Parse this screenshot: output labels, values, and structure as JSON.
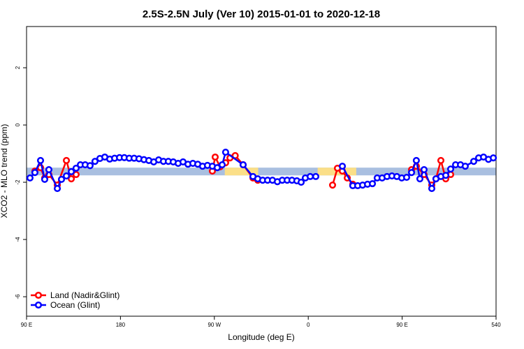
{
  "chart_data": {
    "type": "line",
    "title": "2.5S-2.5N July (Ver 10)   2015-01-01 to 2020-12-18",
    "x_label": "Longitude (deg E)",
    "y_label": "XCO2 - MLO trend (ppm)",
    "xlim": [
      90,
      540
    ],
    "xticks": [
      {
        "value": 90,
        "label": "90 E"
      },
      180,
      {
        "value": 270,
        "label": "90 W"
      },
      {
        "value": 360,
        "label": "0"
      },
      {
        "value": 450,
        "label": "90 E"
      },
      540
    ],
    "ylim": [
      -6.68,
      3.44
    ],
    "yticks": [
      -6,
      -4,
      -2,
      0,
      2
    ],
    "legend": "bottomleft",
    "reference_band": {
      "ylim": [
        -1.76,
        -1.49
      ],
      "color": "#a9bfe0",
      "land_segments": [
        [
          280,
          312
        ],
        [
          369,
          406
        ]
      ],
      "land_color": "#fbdf88"
    },
    "series": [
      {
        "name": "Land (Nadir&Glint)",
        "color": "#ff0000",
        "x": [
          98.0,
          103.4,
          107.4,
          111.4,
          119.5,
          128.2,
          132.9,
          137.5,
          null,
          268.1,
          270.8,
          275.5,
          280.8,
          285.0,
          290.0,
          297.6,
          307.0,
          311.6,
          null,
          383.3,
          388.0,
          392.7,
          397.4,
          402.7,
          null,
          459.0,
          463.6,
          471.0,
          478.4,
          482.4,
          487.1,
          491.8,
          496.5
        ],
        "values": [
          -1.61,
          -1.49,
          -1.85,
          -1.73,
          -2.1,
          -1.24,
          -1.88,
          -1.73,
          null,
          -1.61,
          -1.12,
          -1.46,
          -1.32,
          -1.15,
          -1.07,
          -1.39,
          -1.85,
          -1.93,
          null,
          -2.1,
          -1.51,
          -1.61,
          -1.85,
          -2.07,
          null,
          -1.56,
          -1.44,
          -1.73,
          -2.1,
          -1.88,
          -1.24,
          -1.88,
          -1.73
        ]
      },
      {
        "name": "Ocean (Glint)",
        "color": "#0000ff",
        "x": [
          93.3,
          98.0,
          103.4,
          107.4,
          111.4,
          119.5,
          123.5,
          128.2,
          132.9,
          137.5,
          141.6,
          146.2,
          150.9,
          155.6,
          160.3,
          165.0,
          169.7,
          174.4,
          179.1,
          183.7,
          188.4,
          193.1,
          197.8,
          202.5,
          207.2,
          211.9,
          216.6,
          221.2,
          225.9,
          230.6,
          235.3,
          240.0,
          244.7,
          249.4,
          254.1,
          258.7,
          263.4,
          268.1,
          272.8,
          277.5,
          280.8,
          297.6,
          307.0,
          311.6,
          316.3,
          321.0,
          325.7,
          330.4,
          335.1,
          339.8,
          344.4,
          349.1,
          353.2,
          357.2,
          361.9,
          367.2,
          null,
          392.7,
          402.7,
          407.4,
          412.1,
          416.8,
          421.5,
          426.1,
          430.8,
          435.5,
          440.2,
          444.9,
          449.6,
          454.3,
          459.0,
          463.6,
          467.0,
          471.0,
          478.4,
          482.4,
          487.1,
          491.8,
          496.5,
          501.2,
          505.9,
          510.5,
          518.6,
          523.3,
          528.0,
          532.7,
          537.4
        ],
        "values": [
          -1.85,
          -1.66,
          -1.24,
          -1.9,
          -1.56,
          -2.22,
          -1.9,
          -1.78,
          -1.63,
          -1.51,
          -1.39,
          -1.39,
          -1.42,
          -1.27,
          -1.17,
          -1.12,
          -1.19,
          -1.16,
          -1.14,
          -1.14,
          -1.16,
          -1.16,
          -1.18,
          -1.21,
          -1.24,
          -1.29,
          -1.22,
          -1.27,
          -1.27,
          -1.29,
          -1.34,
          -1.29,
          -1.37,
          -1.34,
          -1.37,
          -1.44,
          -1.41,
          -1.44,
          -1.49,
          -1.39,
          -0.95,
          -1.39,
          -1.8,
          -1.88,
          -1.93,
          -1.93,
          -1.93,
          -1.98,
          -1.93,
          -1.93,
          -1.93,
          -1.95,
          -2.0,
          -1.85,
          -1.8,
          -1.8,
          null,
          -1.44,
          -2.12,
          -2.12,
          -2.1,
          -2.07,
          -2.05,
          -1.85,
          -1.85,
          -1.8,
          -1.78,
          -1.8,
          -1.85,
          -1.83,
          -1.66,
          -1.24,
          -1.88,
          -1.56,
          -2.22,
          -1.88,
          -1.8,
          -1.76,
          -1.54,
          -1.39,
          -1.39,
          -1.44,
          -1.27,
          -1.15,
          -1.12,
          -1.2,
          -1.15
        ]
      }
    ]
  }
}
